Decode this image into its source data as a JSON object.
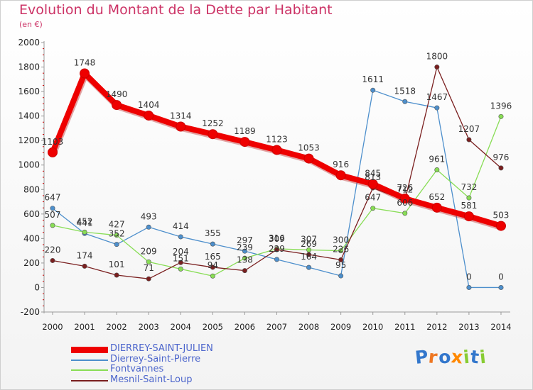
{
  "chart_data": {
    "type": "line",
    "title": "Evolution du Montant de la Dette par Habitant",
    "subtitle": "(en €)",
    "categories": [
      "2000",
      "2001",
      "2002",
      "2003",
      "2004",
      "2005",
      "2006",
      "2007",
      "2008",
      "2009",
      "2010",
      "2011",
      "2012",
      "2013",
      "2014"
    ],
    "ylim": [
      -200,
      2000
    ],
    "yticks": [
      "-200",
      "0",
      "200",
      "400",
      "600",
      "800",
      "1000",
      "1200",
      "1400",
      "1600",
      "1800",
      "2000"
    ],
    "grid": false,
    "legend": "bottom-left",
    "series": [
      {
        "name": "DIERREY-SAINT-JULIEN",
        "color": "#ee0000",
        "values": [
          1103,
          1748,
          1490,
          1404,
          1314,
          1252,
          1189,
          1123,
          1053,
          916,
          845,
          726,
          652,
          581,
          503
        ],
        "labels": [
          "1103",
          "1748",
          "1490",
          "1404",
          "1314",
          "1252",
          "1189",
          "1123",
          "1053",
          "916",
          "845",
          "726",
          "652",
          "581",
          "503"
        ]
      },
      {
        "name": "Dierrey-Saint-Pierre",
        "color": "#4d8fcc",
        "values": [
          647,
          441,
          352,
          493,
          414,
          355,
          297,
          229,
          164,
          95,
          1611,
          1518,
          1467,
          0,
          0
        ],
        "labels": [
          "647",
          "441",
          "352",
          "493",
          "414",
          "355",
          "297",
          "229",
          "164",
          "95",
          "1611",
          "1518",
          "1467",
          "0",
          "0"
        ]
      },
      {
        "name": "Fontvannes",
        "color": "#88dd55",
        "values": [
          507,
          452,
          427,
          209,
          151,
          94,
          239,
          316,
          307,
          300,
          647,
          606,
          961,
          732,
          1396
        ],
        "labels": [
          "507",
          "452",
          "427",
          "209",
          "151",
          "94",
          "239",
          "316",
          "307",
          "300",
          "647",
          "606",
          "961",
          "732",
          "1396"
        ]
      },
      {
        "name": "Mesnil-Saint-Loup",
        "color": "#7a1f1f",
        "values": [
          220,
          174,
          101,
          71,
          204,
          165,
          138,
          309,
          269,
          226,
          813,
          712,
          1800,
          1207,
          976
        ],
        "labels": [
          "220",
          "174",
          "101",
          "71",
          "204",
          "165",
          "138",
          "309",
          "269",
          "226",
          "813",
          "712",
          "1800",
          "1207",
          "976"
        ]
      }
    ]
  },
  "logo": {
    "text": "Proxiti",
    "colors": [
      "#3377cc",
      "#ee7722",
      "#3377cc",
      "#ff8800",
      "#88cc33",
      "#3377cc",
      "#88cc33"
    ]
  }
}
